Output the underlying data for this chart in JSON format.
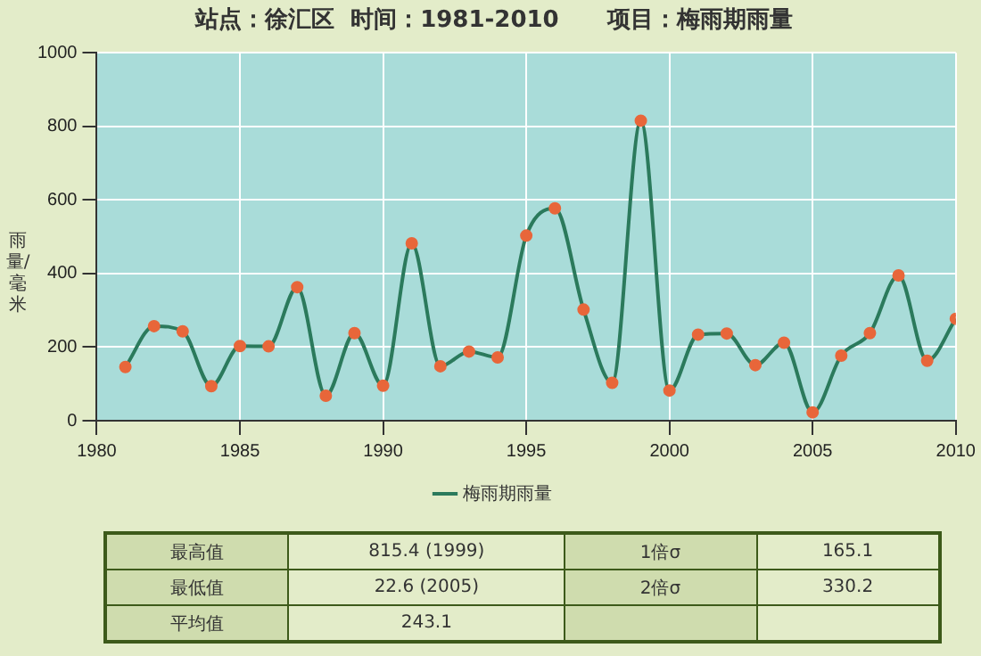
{
  "chart_data": {
    "type": "line",
    "title": "站点：徐汇区  时间：1981-2010      项目：梅雨期雨量",
    "ylabel": "雨量/毫米",
    "x": [
      1981,
      1982,
      1983,
      1984,
      1985,
      1986,
      1987,
      1988,
      1989,
      1990,
      1991,
      1992,
      1993,
      1994,
      1995,
      1996,
      1997,
      1998,
      1999,
      2000,
      2001,
      2002,
      2003,
      2004,
      2005,
      2006,
      2007,
      2008,
      2009,
      2010
    ],
    "series": [
      {
        "name": "梅雨期雨量",
        "color": "#2b7a5c",
        "values": [
          146,
          257,
          243,
          94,
          203,
          202,
          363,
          68,
          238,
          95,
          482,
          148,
          188,
          172,
          503,
          577,
          302,
          103,
          815.4,
          82,
          234,
          237,
          151,
          212,
          22.6,
          177,
          238,
          395,
          163,
          277
        ]
      }
    ],
    "xlim": [
      1980,
      2010
    ],
    "xticks": [
      1980,
      1985,
      1990,
      1995,
      2000,
      2005,
      2010
    ],
    "ylim": [
      0,
      1000
    ],
    "yticks": [
      0,
      200,
      400,
      600,
      800,
      1000
    ],
    "grid": true,
    "legend": "bottom",
    "marker": "circle",
    "line_style": "solid",
    "annotations": [
      "最高值",
      "815.4 (1999)",
      "1倍σ",
      "165.1",
      "最低值",
      "22.6 (2005)",
      "2倍σ",
      "330.2",
      "平均值",
      "243.1"
    ]
  }
}
